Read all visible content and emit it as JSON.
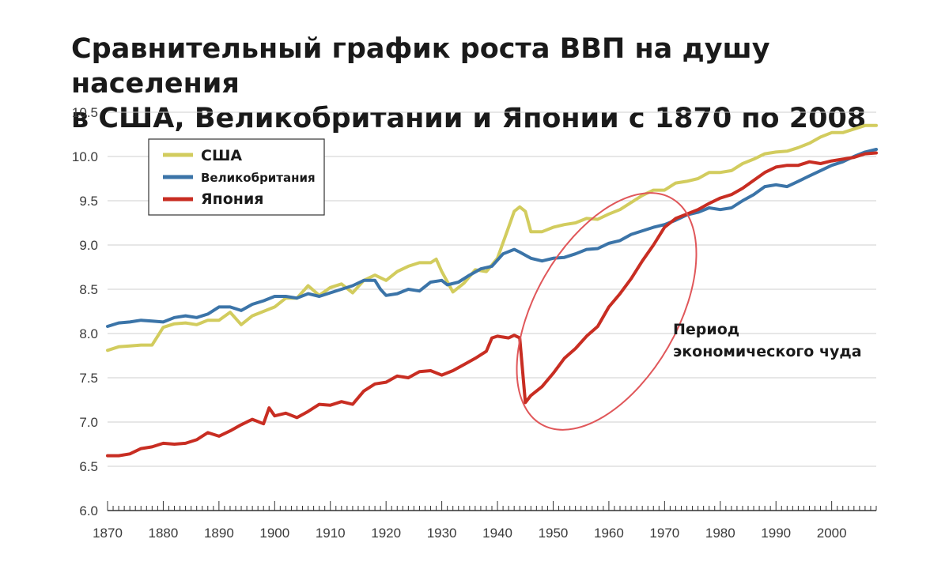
{
  "chart_data": {
    "type": "line",
    "title_lines": [
      "Сравнительный график роста ВВП на душу населения",
      "в США, Великобритании и Японии с 1870 по 2008"
    ],
    "xlim": [
      1870,
      2008
    ],
    "ylim": [
      6.0,
      10.5
    ],
    "x_ticks": [
      1870,
      1880,
      1890,
      1900,
      1910,
      1920,
      1930,
      1940,
      1950,
      1960,
      1970,
      1980,
      1990,
      2000
    ],
    "y_ticks": [
      "6.0",
      "6.5",
      "7.0",
      "7.5",
      "8.0",
      "8.5",
      "9.0",
      "9.5",
      "10.0",
      "10.5"
    ],
    "grid": "horizontal",
    "legend_position": "top-left",
    "annotation": {
      "lines": [
        "Период",
        "экономического чуда"
      ],
      "highlight": "red ellipse around Japan 1945–1970"
    },
    "series": [
      {
        "name": "США",
        "color": "#d2cc5e",
        "points": [
          [
            1870,
            7.81
          ],
          [
            1872,
            7.85
          ],
          [
            1874,
            7.86
          ],
          [
            1876,
            7.87
          ],
          [
            1878,
            7.87
          ],
          [
            1880,
            8.07
          ],
          [
            1882,
            8.11
          ],
          [
            1884,
            8.12
          ],
          [
            1886,
            8.1
          ],
          [
            1888,
            8.15
          ],
          [
            1890,
            8.15
          ],
          [
            1892,
            8.24
          ],
          [
            1894,
            8.1
          ],
          [
            1896,
            8.2
          ],
          [
            1898,
            8.25
          ],
          [
            1900,
            8.3
          ],
          [
            1902,
            8.4
          ],
          [
            1904,
            8.4
          ],
          [
            1906,
            8.54
          ],
          [
            1908,
            8.43
          ],
          [
            1910,
            8.52
          ],
          [
            1912,
            8.56
          ],
          [
            1914,
            8.46
          ],
          [
            1916,
            8.6
          ],
          [
            1918,
            8.66
          ],
          [
            1920,
            8.6
          ],
          [
            1922,
            8.7
          ],
          [
            1924,
            8.76
          ],
          [
            1926,
            8.8
          ],
          [
            1928,
            8.8
          ],
          [
            1929,
            8.84
          ],
          [
            1930,
            8.7
          ],
          [
            1932,
            8.47
          ],
          [
            1934,
            8.57
          ],
          [
            1936,
            8.72
          ],
          [
            1938,
            8.7
          ],
          [
            1940,
            8.85
          ],
          [
            1942,
            9.2
          ],
          [
            1943,
            9.38
          ],
          [
            1944,
            9.43
          ],
          [
            1945,
            9.38
          ],
          [
            1946,
            9.15
          ],
          [
            1948,
            9.15
          ],
          [
            1950,
            9.2
          ],
          [
            1952,
            9.23
          ],
          [
            1954,
            9.25
          ],
          [
            1956,
            9.3
          ],
          [
            1958,
            9.29
          ],
          [
            1960,
            9.35
          ],
          [
            1962,
            9.4
          ],
          [
            1964,
            9.48
          ],
          [
            1966,
            9.56
          ],
          [
            1968,
            9.62
          ],
          [
            1970,
            9.62
          ],
          [
            1972,
            9.7
          ],
          [
            1974,
            9.72
          ],
          [
            1976,
            9.75
          ],
          [
            1978,
            9.82
          ],
          [
            1980,
            9.82
          ],
          [
            1982,
            9.84
          ],
          [
            1984,
            9.92
          ],
          [
            1986,
            9.97
          ],
          [
            1988,
            10.03
          ],
          [
            1990,
            10.05
          ],
          [
            1992,
            10.06
          ],
          [
            1994,
            10.1
          ],
          [
            1996,
            10.15
          ],
          [
            1998,
            10.22
          ],
          [
            2000,
            10.27
          ],
          [
            2002,
            10.27
          ],
          [
            2004,
            10.31
          ],
          [
            2006,
            10.35
          ],
          [
            2008,
            10.35
          ]
        ]
      },
      {
        "name": "Великобритания",
        "color": "#3b74a8",
        "points": [
          [
            1870,
            8.08
          ],
          [
            1872,
            8.12
          ],
          [
            1874,
            8.13
          ],
          [
            1876,
            8.15
          ],
          [
            1878,
            8.14
          ],
          [
            1880,
            8.13
          ],
          [
            1882,
            8.18
          ],
          [
            1884,
            8.2
          ],
          [
            1886,
            8.18
          ],
          [
            1888,
            8.22
          ],
          [
            1890,
            8.3
          ],
          [
            1892,
            8.3
          ],
          [
            1894,
            8.26
          ],
          [
            1896,
            8.33
          ],
          [
            1898,
            8.37
          ],
          [
            1900,
            8.42
          ],
          [
            1902,
            8.42
          ],
          [
            1904,
            8.4
          ],
          [
            1906,
            8.45
          ],
          [
            1908,
            8.42
          ],
          [
            1910,
            8.46
          ],
          [
            1912,
            8.5
          ],
          [
            1914,
            8.54
          ],
          [
            1916,
            8.6
          ],
          [
            1918,
            8.6
          ],
          [
            1919,
            8.5
          ],
          [
            1920,
            8.43
          ],
          [
            1922,
            8.45
          ],
          [
            1924,
            8.5
          ],
          [
            1926,
            8.48
          ],
          [
            1928,
            8.58
          ],
          [
            1930,
            8.6
          ],
          [
            1931,
            8.55
          ],
          [
            1933,
            8.58
          ],
          [
            1935,
            8.66
          ],
          [
            1937,
            8.73
          ],
          [
            1939,
            8.76
          ],
          [
            1941,
            8.9
          ],
          [
            1943,
            8.95
          ],
          [
            1944,
            8.92
          ],
          [
            1946,
            8.85
          ],
          [
            1948,
            8.82
          ],
          [
            1950,
            8.85
          ],
          [
            1952,
            8.86
          ],
          [
            1954,
            8.9
          ],
          [
            1956,
            8.95
          ],
          [
            1958,
            8.96
          ],
          [
            1960,
            9.02
          ],
          [
            1962,
            9.05
          ],
          [
            1964,
            9.12
          ],
          [
            1966,
            9.16
          ],
          [
            1968,
            9.2
          ],
          [
            1970,
            9.23
          ],
          [
            1972,
            9.28
          ],
          [
            1974,
            9.34
          ],
          [
            1976,
            9.37
          ],
          [
            1978,
            9.42
          ],
          [
            1980,
            9.4
          ],
          [
            1982,
            9.42
          ],
          [
            1984,
            9.5
          ],
          [
            1986,
            9.57
          ],
          [
            1988,
            9.66
          ],
          [
            1990,
            9.68
          ],
          [
            1992,
            9.66
          ],
          [
            1994,
            9.72
          ],
          [
            1996,
            9.78
          ],
          [
            1998,
            9.84
          ],
          [
            2000,
            9.9
          ],
          [
            2002,
            9.94
          ],
          [
            2004,
            10.0
          ],
          [
            2006,
            10.05
          ],
          [
            2008,
            10.08
          ]
        ]
      },
      {
        "name": "Япония",
        "color": "#c82d22",
        "points": [
          [
            1870,
            6.62
          ],
          [
            1872,
            6.62
          ],
          [
            1874,
            6.64
          ],
          [
            1876,
            6.7
          ],
          [
            1878,
            6.72
          ],
          [
            1880,
            6.76
          ],
          [
            1882,
            6.75
          ],
          [
            1884,
            6.76
          ],
          [
            1886,
            6.8
          ],
          [
            1888,
            6.88
          ],
          [
            1890,
            6.84
          ],
          [
            1892,
            6.9
          ],
          [
            1894,
            6.97
          ],
          [
            1896,
            7.03
          ],
          [
            1898,
            6.98
          ],
          [
            1899,
            7.16
          ],
          [
            1900,
            7.07
          ],
          [
            1902,
            7.1
          ],
          [
            1904,
            7.05
          ],
          [
            1906,
            7.12
          ],
          [
            1908,
            7.2
          ],
          [
            1910,
            7.19
          ],
          [
            1912,
            7.23
          ],
          [
            1914,
            7.2
          ],
          [
            1916,
            7.35
          ],
          [
            1918,
            7.43
          ],
          [
            1920,
            7.45
          ],
          [
            1922,
            7.52
          ],
          [
            1924,
            7.5
          ],
          [
            1926,
            7.57
          ],
          [
            1928,
            7.58
          ],
          [
            1930,
            7.53
          ],
          [
            1932,
            7.58
          ],
          [
            1934,
            7.65
          ],
          [
            1936,
            7.72
          ],
          [
            1938,
            7.8
          ],
          [
            1939,
            7.95
          ],
          [
            1940,
            7.97
          ],
          [
            1942,
            7.95
          ],
          [
            1943,
            7.98
          ],
          [
            1944,
            7.95
          ],
          [
            1945,
            7.22
          ],
          [
            1946,
            7.3
          ],
          [
            1948,
            7.4
          ],
          [
            1950,
            7.55
          ],
          [
            1952,
            7.72
          ],
          [
            1954,
            7.83
          ],
          [
            1956,
            7.97
          ],
          [
            1958,
            8.08
          ],
          [
            1960,
            8.3
          ],
          [
            1962,
            8.45
          ],
          [
            1964,
            8.62
          ],
          [
            1966,
            8.82
          ],
          [
            1968,
            9.0
          ],
          [
            1970,
            9.2
          ],
          [
            1972,
            9.3
          ],
          [
            1974,
            9.35
          ],
          [
            1976,
            9.4
          ],
          [
            1978,
            9.47
          ],
          [
            1980,
            9.53
          ],
          [
            1982,
            9.57
          ],
          [
            1984,
            9.64
          ],
          [
            1986,
            9.73
          ],
          [
            1988,
            9.82
          ],
          [
            1990,
            9.88
          ],
          [
            1992,
            9.9
          ],
          [
            1994,
            9.9
          ],
          [
            1996,
            9.94
          ],
          [
            1998,
            9.92
          ],
          [
            2000,
            9.95
          ],
          [
            2002,
            9.97
          ],
          [
            2004,
            9.99
          ],
          [
            2006,
            10.03
          ],
          [
            2008,
            10.04
          ]
        ]
      }
    ]
  }
}
